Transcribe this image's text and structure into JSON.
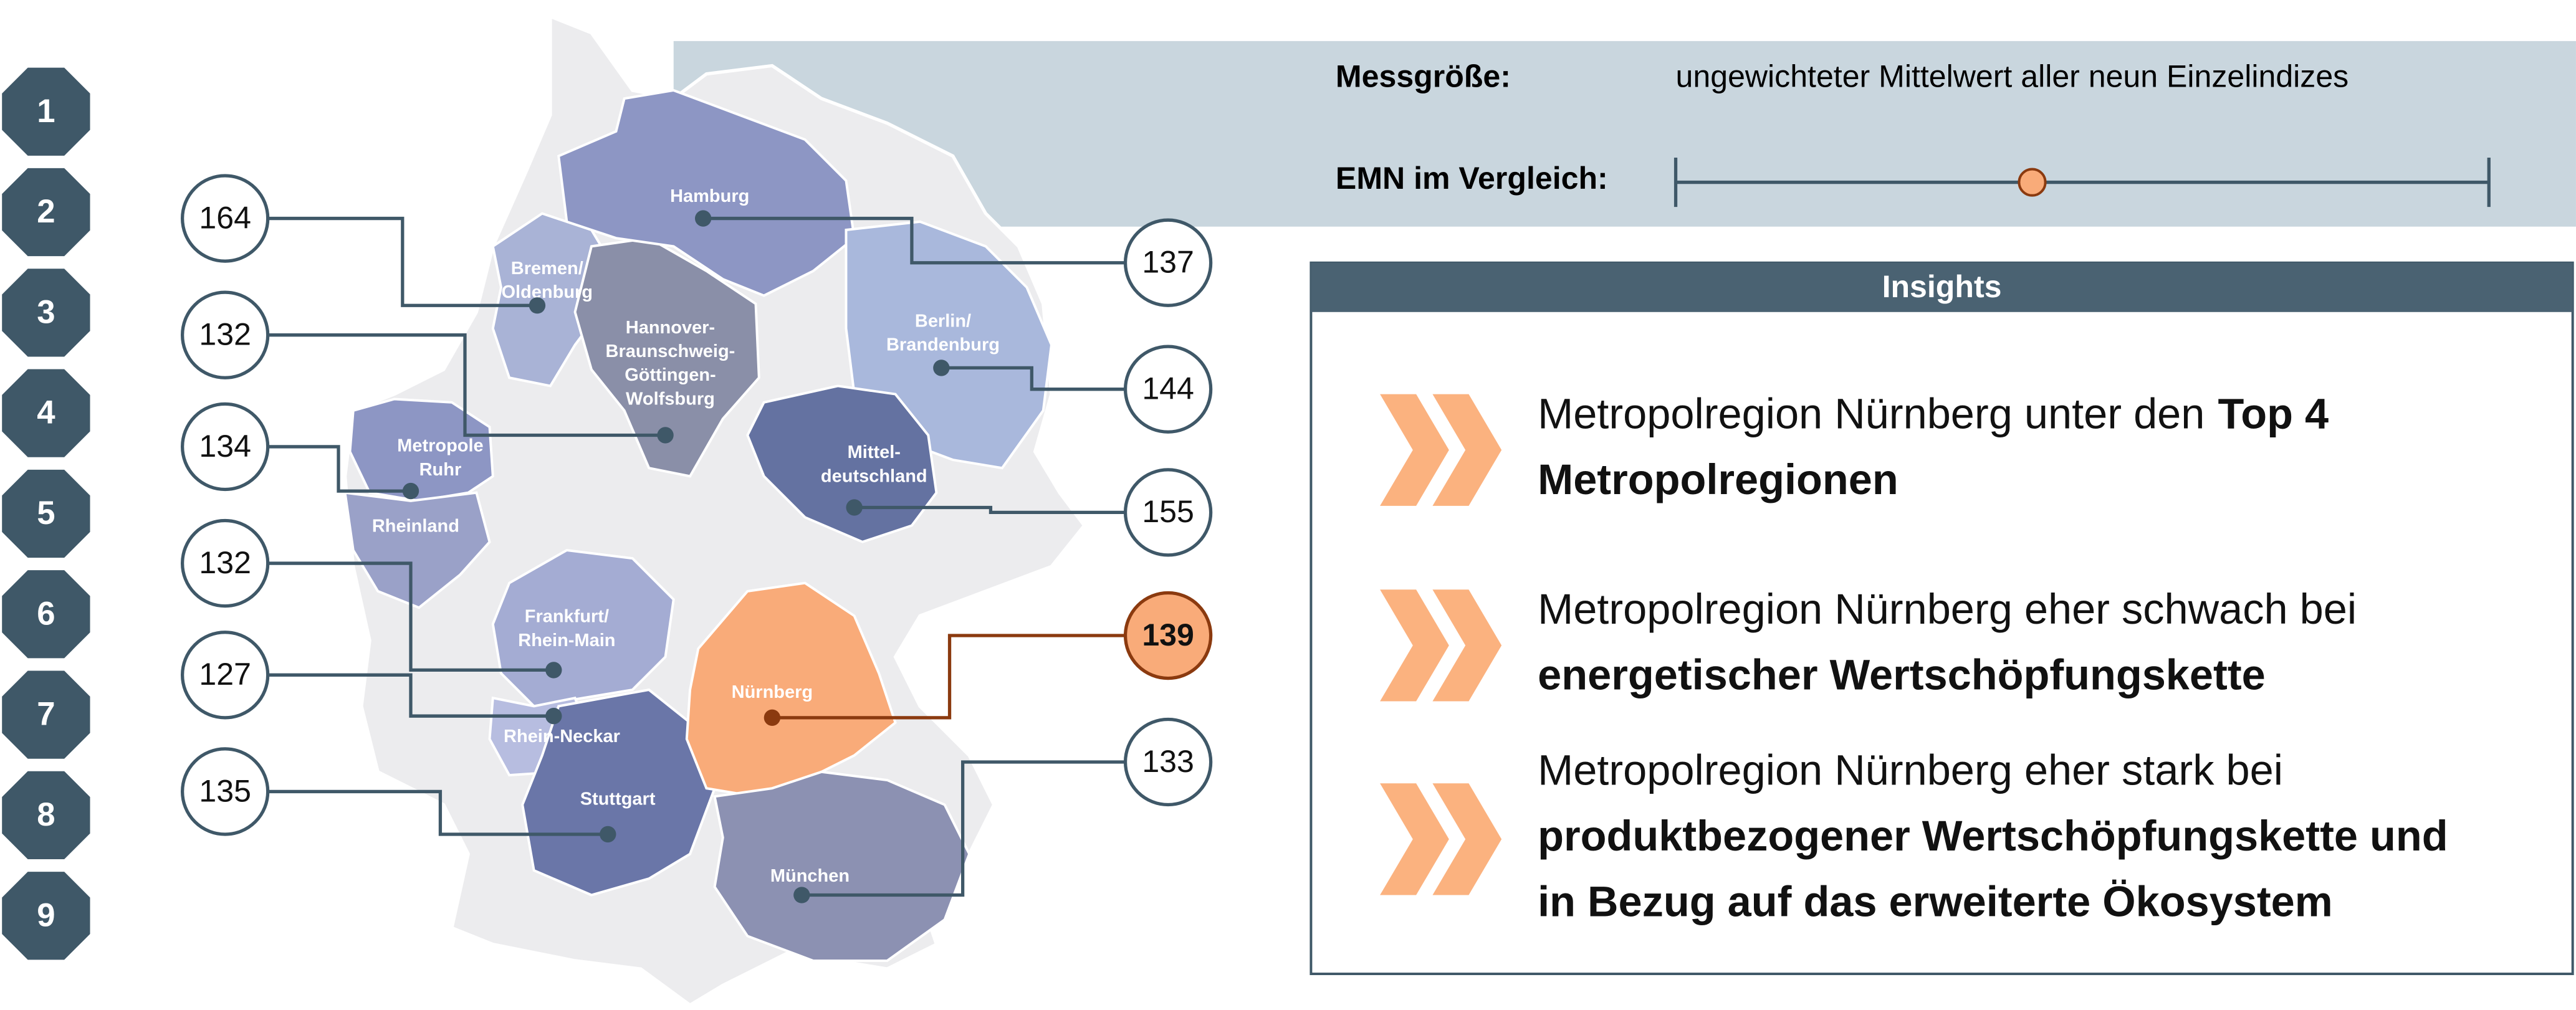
{
  "nav": [
    "1",
    "2",
    "3",
    "4",
    "5",
    "6",
    "7",
    "8",
    "9"
  ],
  "header": {
    "measure_label": "Messgröße:",
    "measure_value": "ungewichteter Mittelwert aller neun Einzelindizes",
    "compare_label": "EMN im Vergleich:"
  },
  "regions": [
    {
      "name_lines": [
        "Bremen/",
        "Oldenburg"
      ],
      "value": 164,
      "highlight": false
    },
    {
      "name_lines": [
        "Hannover-",
        "Braunschweig-",
        "Göttingen-",
        "Wolfsburg"
      ],
      "value": 132,
      "highlight": false
    },
    {
      "name_lines": [
        "Metropole",
        "Ruhr"
      ],
      "value": 134,
      "highlight": false
    },
    {
      "name_lines": [
        "Rheinland"
      ]
    },
    {
      "name_lines": [
        "Frankfurt/",
        "Rhein-Main"
      ],
      "value": 132,
      "highlight": false
    },
    {
      "name_lines": [
        "Rhein-Neckar"
      ],
      "value": 127,
      "highlight": false
    },
    {
      "name_lines": [
        "Stuttgart"
      ],
      "value": 135,
      "highlight": false
    },
    {
      "name_lines": [
        "Hamburg"
      ],
      "value": 137,
      "highlight": false
    },
    {
      "name_lines": [
        "Berlin/",
        "Brandenburg"
      ],
      "value": 144,
      "highlight": false
    },
    {
      "name_lines": [
        "Mittel-",
        "deutschland"
      ],
      "value": 155,
      "highlight": false
    },
    {
      "name_lines": [
        "Nürnberg"
      ],
      "value": 139,
      "highlight": true
    },
    {
      "name_lines": [
        "München"
      ],
      "value": 133,
      "highlight": false
    }
  ],
  "insights": {
    "title": "Insights",
    "items": [
      {
        "lines": [
          [
            {
              "text": "Metropolregion Nürnberg unter den",
              "bold": false
            },
            {
              "text": "Top 4",
              "bold": true
            }
          ],
          [
            {
              "text": "Metropolregionen",
              "bold": true
            }
          ]
        ]
      },
      {
        "lines": [
          [
            {
              "text": "Metropolregion Nürnberg eher schwach bei",
              "bold": false
            }
          ],
          [
            {
              "text": "energetischer Wertschöpfungskette",
              "bold": true
            }
          ]
        ]
      },
      {
        "lines": [
          [
            {
              "text": "Metropolregion Nürnberg eher stark bei",
              "bold": false
            }
          ],
          [
            {
              "text": "produktbezogener Wertschöpfungskette und",
              "bold": true
            }
          ],
          [
            {
              "text": "in Bezug auf das erweiterte Ökosystem",
              "bold": true
            }
          ]
        ]
      }
    ]
  }
}
